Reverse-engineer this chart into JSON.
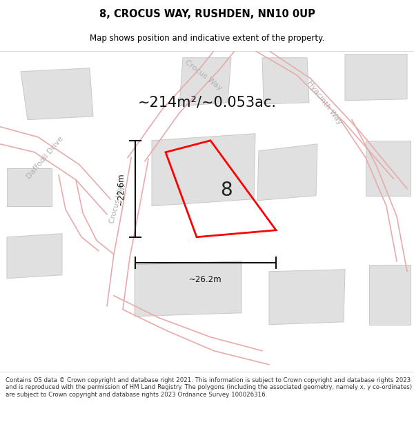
{
  "title": "8, CROCUS WAY, RUSHDEN, NN10 0UP",
  "subtitle": "Map shows position and indicative extent of the property.",
  "area_text": "~214m²/~0.053ac.",
  "dim_width": "~26.2m",
  "dim_height": "~22.6m",
  "property_number": "8",
  "footer": "Contains OS data © Crown copyright and database right 2021. This information is subject to Crown copyright and database rights 2023 and is reproduced with the permission of HM Land Registry. The polygons (including the associated geometry, namely x, y co-ordinates) are subject to Crown copyright and database rights 2023 Ordnance Survey 100026316.",
  "map_bg": "#f2f2f2",
  "plot_color": "#ff0000",
  "road_line_color": "#e8aaaa",
  "building_color": "#e0e0e0",
  "building_edge": "#c8c8c8",
  "street_label_color": "#b0b0b0",
  "title_color": "#000000",
  "footer_color": "#333333",
  "dim_color": "#111111",
  "white": "#ffffff"
}
